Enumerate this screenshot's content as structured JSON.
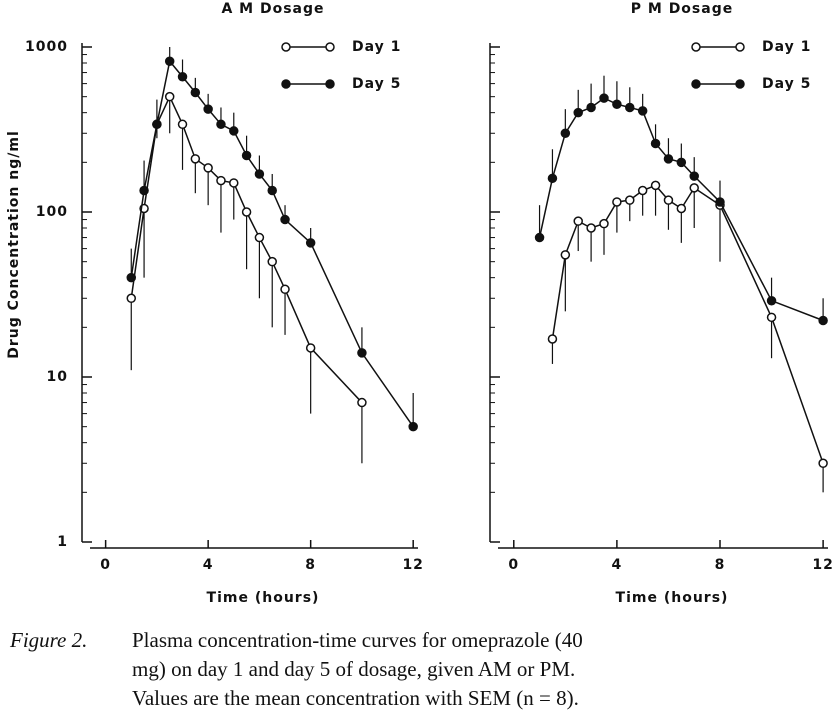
{
  "chart_data": [
    {
      "type": "line",
      "title": "A M Dosage",
      "xlabel": "Time (hours)",
      "ylabel": "Drug Concentration ng/ml",
      "xlim": [
        -1,
        12.5
      ],
      "xticks": [
        0,
        4,
        8,
        12
      ],
      "ylim": [
        1,
        1000
      ],
      "yticks": [
        1,
        10,
        100,
        1000
      ],
      "log_y": true,
      "ytick_labels": true,
      "legend": "upper right",
      "series": [
        {
          "name": "Day 1",
          "color": "#111111",
          "marker": "open",
          "error_side": "down",
          "x": [
            1,
            1.5,
            2,
            2.5,
            3,
            3.5,
            4,
            4.5,
            5,
            5.5,
            6,
            6.5,
            7,
            8,
            10
          ],
          "values": [
            30,
            105,
            340,
            500,
            340,
            210,
            185,
            155,
            150,
            100,
            70,
            50,
            34,
            15,
            7
          ],
          "errors": [
            19,
            65,
            60,
            200,
            160,
            80,
            75,
            80,
            60,
            55,
            40,
            30,
            16,
            9,
            4
          ]
        },
        {
          "name": "Day 5",
          "color": "#111111",
          "marker": "filled",
          "error_side": "up",
          "x": [
            1,
            1.5,
            2,
            2.5,
            3,
            3.5,
            4,
            4.5,
            5,
            5.5,
            6,
            6.5,
            7,
            8,
            10,
            12
          ],
          "values": [
            40,
            135,
            340,
            820,
            660,
            530,
            420,
            340,
            310,
            220,
            170,
            135,
            90,
            65,
            14,
            5
          ],
          "errors": [
            20,
            70,
            140,
            180,
            180,
            120,
            100,
            90,
            90,
            70,
            50,
            35,
            20,
            15,
            6,
            3
          ]
        }
      ]
    },
    {
      "type": "line",
      "title": "P M Dosage",
      "xlabel": "Time (hours)",
      "xlim": [
        -1,
        12.5
      ],
      "xticks": [
        0,
        4,
        8,
        12
      ],
      "ylim": [
        1,
        1000
      ],
      "yticks": [
        1,
        10,
        100,
        1000
      ],
      "log_y": true,
      "ytick_labels": false,
      "legend": "upper right",
      "series": [
        {
          "name": "Day 1",
          "color": "#111111",
          "marker": "open",
          "error_side": "down",
          "x": [
            1.5,
            2,
            2.5,
            3,
            3.5,
            4,
            4.5,
            5,
            5.5,
            6,
            6.5,
            7,
            8,
            10,
            12
          ],
          "values": [
            17,
            55,
            88,
            80,
            85,
            115,
            118,
            135,
            145,
            118,
            105,
            140,
            110,
            23,
            3
          ],
          "errors": [
            5,
            30,
            30,
            30,
            30,
            40,
            30,
            40,
            50,
            40,
            40,
            60,
            60,
            10,
            1
          ]
        },
        {
          "name": "Day 5",
          "color": "#111111",
          "marker": "filled",
          "error_side": "up",
          "x": [
            1,
            1.5,
            2,
            2.5,
            3,
            3.5,
            4,
            4.5,
            5,
            5.5,
            6,
            6.5,
            7,
            8,
            10,
            12
          ],
          "values": [
            70,
            160,
            300,
            400,
            430,
            490,
            450,
            430,
            410,
            260,
            210,
            200,
            165,
            115,
            29,
            22
          ],
          "errors": [
            40,
            80,
            120,
            150,
            170,
            180,
            170,
            140,
            110,
            80,
            70,
            60,
            50,
            40,
            11,
            8
          ]
        }
      ]
    }
  ],
  "caption": {
    "label": "Figure 2.",
    "lines": [
      "Plasma concentration-time curves for omeprazole (40",
      "mg) on day 1 and day 5 of dosage, given AM or PM.",
      "Values are the mean concentration with SEM (n = 8)."
    ]
  }
}
